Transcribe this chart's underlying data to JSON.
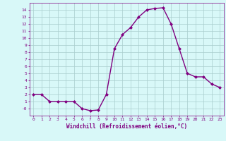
{
  "x": [
    0,
    1,
    2,
    3,
    4,
    5,
    6,
    7,
    8,
    9,
    10,
    11,
    12,
    13,
    14,
    15,
    16,
    17,
    18,
    19,
    20,
    21,
    22,
    23
  ],
  "y": [
    2,
    2,
    1,
    1,
    1,
    1,
    0,
    -0.3,
    -0.2,
    2,
    8.5,
    10.5,
    11.5,
    13,
    14,
    14.2,
    14.3,
    12,
    8.5,
    5,
    4.5,
    4.5,
    3.5,
    3
  ],
  "line_color": "#800080",
  "marker": "D",
  "marker_size": 2,
  "bg_color": "#d8f8f8",
  "grid_color": "#aacece",
  "xlabel": "Windchill (Refroidissement éolien,°C)",
  "xlabel_color": "#800080",
  "tick_color": "#800080",
  "ylim": [
    -1,
    15
  ],
  "ytick_labels": [
    "14",
    "13",
    "12",
    "11",
    "10",
    "9",
    "8",
    "7",
    "6",
    "5",
    "4",
    "3",
    "2",
    "1",
    "-0"
  ],
  "ytick_values": [
    14,
    13,
    12,
    11,
    10,
    9,
    8,
    7,
    6,
    5,
    4,
    3,
    2,
    1,
    0
  ],
  "xlim": [
    -0.5,
    23.5
  ]
}
